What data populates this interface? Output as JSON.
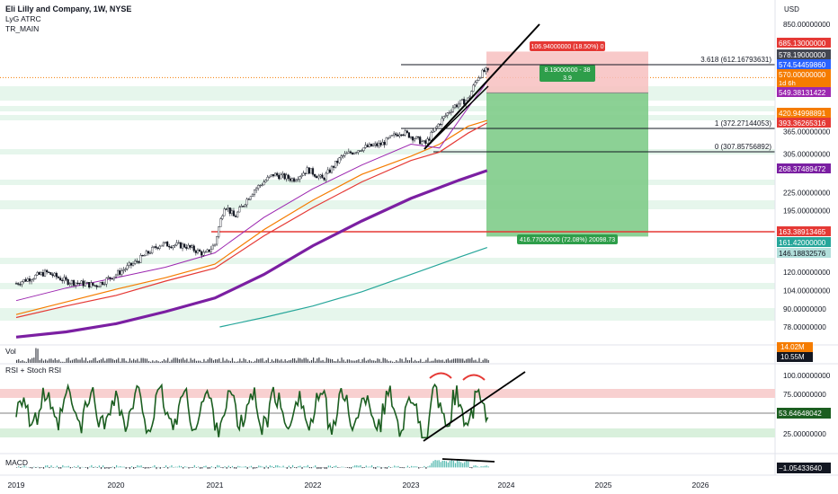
{
  "header": {
    "symbol_line": "Eli Lilly and Company, 1W, NYSE",
    "indicators": [
      "LyG ATRC",
      "TR_MAIN"
    ],
    "currency": "USD"
  },
  "price_axis": {
    "ticks": [
      {
        "value": 850,
        "label": "850.00000000"
      },
      {
        "value": 685.13,
        "label": "685.13000000",
        "badge": "#e53935"
      },
      {
        "value": 578.19,
        "label": "578.19000000",
        "badge": "#434651"
      },
      {
        "value": 574.5446,
        "label": "574.54459860",
        "badge": "#2962ff"
      },
      {
        "value": 570,
        "label": "570.00000000",
        "badge": "#f57c00",
        "sub": "1d 6h"
      },
      {
        "value": 549.3813,
        "label": "549.38131422",
        "badge": "#9c27b0"
      },
      {
        "value": 420.95,
        "label": "420.94998891",
        "badge": "#f57c00"
      },
      {
        "value": 393.3627,
        "label": "393.36265316",
        "badge": "#e53935"
      },
      {
        "value": 365,
        "label": "365.00000000"
      },
      {
        "value": 305,
        "label": "305.00000000"
      },
      {
        "value": 268.3749,
        "label": "268.37489472",
        "badge": "#7b1fa2"
      },
      {
        "value": 225,
        "label": "225.00000000"
      },
      {
        "value": 195,
        "label": "195.00000000"
      },
      {
        "value": 163.3891,
        "label": "163.38913465",
        "badge": "#e53935"
      },
      {
        "value": 161.42,
        "label": "161.42000000",
        "badge": "#26a69a"
      },
      {
        "value": 146.1883,
        "label": "146.18832576",
        "badge": "#b2dfdb"
      },
      {
        "value": 120,
        "label": "120.00000000"
      },
      {
        "value": 104,
        "label": "104.00000000"
      },
      {
        "value": 90,
        "label": "90.00000000"
      },
      {
        "value": 78,
        "label": "78.00000000"
      }
    ]
  },
  "time_axis": [
    "2019",
    "2020",
    "2021",
    "2022",
    "2023",
    "2024",
    "2025",
    "2026"
  ],
  "annotations": {
    "fib_3618": "3.618 (612.16793631)",
    "fib_1": "1 (372.27144053)",
    "fib_0": "0 (307.85756892)",
    "stop_box": "106.94000000 (18.50%) 0",
    "entry_box_line1": "8.19000000 - 38",
    "entry_box_line2": "3.9",
    "target_box": "416.77000000 (72.08%) 20098.73"
  },
  "volume_pane": {
    "title": "Vol",
    "badges": [
      {
        "label": "14.02M",
        "badge": "#f57c00"
      },
      {
        "label": "10.55M",
        "badge": "#131722"
      }
    ]
  },
  "rsi_pane": {
    "title": "RSI + Stoch RSI",
    "ticks": [
      {
        "value": 100,
        "label": "100.00000000"
      },
      {
        "value": 75,
        "label": "75.00000000"
      },
      {
        "value": 53.6465,
        "label": "53.64648042",
        "badge": "#1b5e20"
      },
      {
        "value": 25,
        "label": "25.00000000"
      }
    ]
  },
  "macd_pane": {
    "title": "MACD",
    "badge": {
      "label": "−1.05433640",
      "badge": "#131722"
    }
  },
  "chart_data": {
    "type": "line",
    "title": "Eli Lilly and Company, 1W, NYSE",
    "x": [
      "2019",
      "2020",
      "2021",
      "2022",
      "2023",
      "2024",
      "2025",
      "2026"
    ],
    "series": [
      {
        "name": "",
        "color": "#131722",
        "values": [
          110,
          120,
          160,
          260,
          370,
          570,
          null,
          null
        ]
      },
      {
        "name": "",
        "color": "#7b1fa2",
        "values": [
          68,
          78,
          92,
          130,
          200,
          268,
          null,
          null
        ]
      },
      {
        "name": "",
        "color": "#26a69a",
        "values": [
          null,
          null,
          72,
          88,
          110,
          146,
          null,
          null
        ]
      }
    ],
    "price_scale": "log",
    "ylim": [
      70,
      900
    ],
    "levels": {
      "fib_3618": 612.17,
      "fib_1": 372.27,
      "fib_0": 307.86,
      "red_line": 163.39,
      "stop": 685.13,
      "entry": 578.19,
      "target": 161.42
    },
    "rsi": {
      "last": 53.65,
      "bands": [
        75,
        25
      ],
      "ylim": [
        0,
        110
      ]
    },
    "macd": {
      "last": -1.054
    },
    "volume": {
      "last": "10.55M"
    }
  }
}
